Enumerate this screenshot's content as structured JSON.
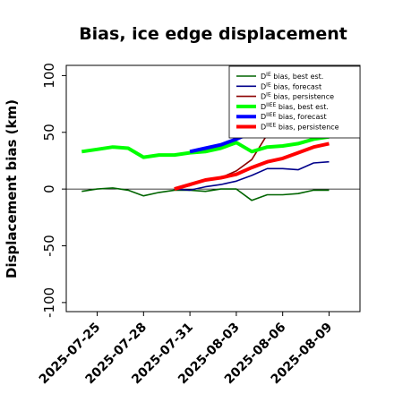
{
  "chart_data": {
    "type": "line",
    "title": "Bias, ice edge displacement",
    "ylabel": "Displacement bias (km)",
    "xlabel": "",
    "ylim": [
      -108,
      109
    ],
    "xlim": [
      "2025-07-23",
      "2025-08-11"
    ],
    "yticks": [
      -100,
      -50,
      0,
      50,
      100
    ],
    "xticks": [
      {
        "label": "2025-07-25",
        "date": "2025-07-25",
        "color": "#000000"
      },
      {
        "label": "2025-07-28",
        "date": "2025-07-28",
        "color": "#000000"
      },
      {
        "label": "2025-07-31",
        "date": "2025-07-31",
        "color": "#228b22"
      },
      {
        "label": "2025-08-03",
        "date": "2025-08-03",
        "color": "#000000"
      },
      {
        "label": "2025-08-06",
        "date": "2025-08-06",
        "color": "#000000"
      },
      {
        "label": "2025-08-09",
        "date": "2025-08-09",
        "color": "#000000"
      }
    ],
    "grid": false,
    "zero_line": true,
    "legend_position": "top-right",
    "series": [
      {
        "name": "D^IE bias, best est.",
        "legend_base": "D",
        "legend_sup": "IE",
        "legend_rest": " bias, best est.",
        "color": "#006400",
        "width": 1.6,
        "x": [
          "2025-07-24",
          "2025-07-25",
          "2025-07-26",
          "2025-07-27",
          "2025-07-28",
          "2025-07-29",
          "2025-07-30",
          "2025-07-31",
          "2025-08-01",
          "2025-08-02",
          "2025-08-03",
          "2025-08-04",
          "2025-08-05",
          "2025-08-06",
          "2025-08-07",
          "2025-08-08",
          "2025-08-09"
        ],
        "y": [
          -2,
          0,
          1,
          -1,
          -6,
          -3,
          -1,
          -1,
          -2,
          0,
          0,
          -10,
          -5,
          -5,
          -4,
          -1,
          -1
        ]
      },
      {
        "name": "D^IE bias, forecast",
        "legend_base": "D",
        "legend_sup": "IE",
        "legend_rest": " bias, forecast",
        "color": "#00008b",
        "width": 1.6,
        "x": [
          "2025-07-30",
          "2025-07-31",
          "2025-08-01",
          "2025-08-02",
          "2025-08-03",
          "2025-08-04",
          "2025-08-05",
          "2025-08-06",
          "2025-08-07",
          "2025-08-08",
          "2025-08-09"
        ],
        "y": [
          0,
          -1,
          2,
          4,
          7,
          12,
          18,
          18,
          17,
          23,
          24
        ]
      },
      {
        "name": "D^IE bias, persistence",
        "legend_base": "D",
        "legend_sup": "IE",
        "legend_rest": " bias, persistence",
        "color": "#8b0000",
        "width": 1.6,
        "x": [
          "2025-07-30",
          "2025-07-31",
          "2025-08-01",
          "2025-08-02",
          "2025-08-03",
          "2025-08-04",
          "2025-08-05",
          "2025-08-06",
          "2025-08-07",
          "2025-08-08",
          "2025-08-09"
        ],
        "y": [
          0,
          3,
          8,
          10,
          16,
          26,
          48,
          60,
          64,
          70,
          74
        ]
      },
      {
        "name": "D^IIEE bias, best est.",
        "legend_base": "D",
        "legend_sup": "IIEE",
        "legend_rest": " bias, best est.",
        "color": "#00ff00",
        "width": 4,
        "x": [
          "2025-07-24",
          "2025-07-25",
          "2025-07-26",
          "2025-07-27",
          "2025-07-28",
          "2025-07-29",
          "2025-07-30",
          "2025-07-31",
          "2025-08-01",
          "2025-08-02",
          "2025-08-03",
          "2025-08-04",
          "2025-08-05",
          "2025-08-06",
          "2025-08-07",
          "2025-08-08",
          "2025-08-09"
        ],
        "y": [
          33,
          35,
          37,
          36,
          28,
          30,
          30,
          32,
          33,
          36,
          41,
          33,
          37,
          38,
          40,
          44,
          46
        ]
      },
      {
        "name": "D^IIEE bias, forecast",
        "legend_base": "D",
        "legend_sup": "IIEE",
        "legend_rest": " bias, forecast",
        "color": "#0000ff",
        "width": 4,
        "x": [
          "2025-07-31",
          "2025-08-01",
          "2025-08-02",
          "2025-08-03",
          "2025-08-04",
          "2025-08-05",
          "2025-08-06",
          "2025-08-07",
          "2025-08-08",
          "2025-08-09"
        ],
        "y": [
          33,
          36,
          39,
          44,
          50,
          56,
          60,
          63,
          67,
          72
        ]
      },
      {
        "name": "D^IIEE bias, persistence",
        "legend_base": "D",
        "legend_sup": "IIEE",
        "legend_rest": " bias, persistence",
        "color": "#ff0000",
        "width": 4,
        "x": [
          "2025-07-30",
          "2025-07-31",
          "2025-08-01",
          "2025-08-02",
          "2025-08-03",
          "2025-08-04",
          "2025-08-05",
          "2025-08-06",
          "2025-08-07",
          "2025-08-08",
          "2025-08-09"
        ],
        "y": [
          0,
          4,
          8,
          10,
          13,
          19,
          24,
          27,
          32,
          37,
          40
        ]
      }
    ]
  }
}
